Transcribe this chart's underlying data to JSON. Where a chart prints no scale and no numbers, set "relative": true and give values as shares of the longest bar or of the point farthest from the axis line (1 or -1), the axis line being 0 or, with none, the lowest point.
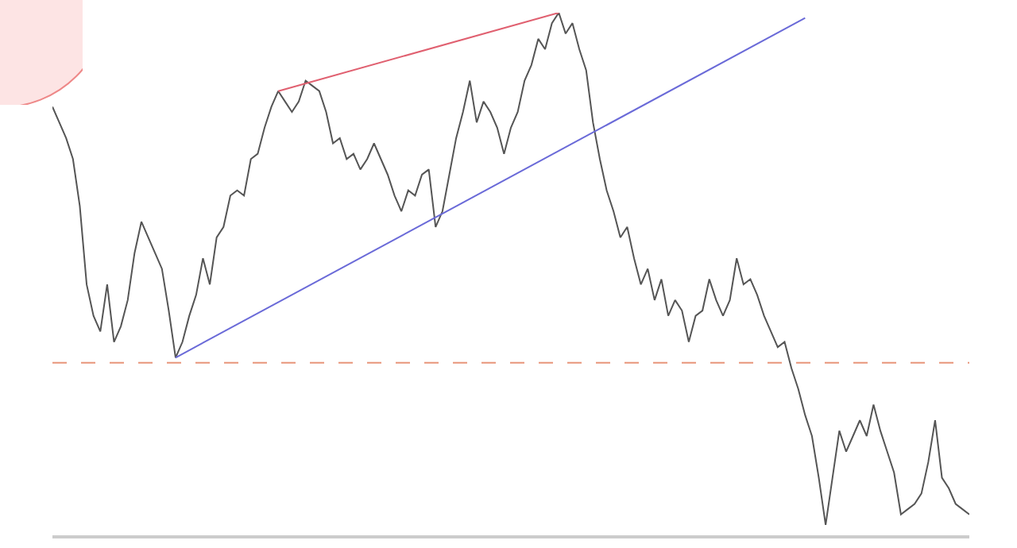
{
  "chart_data": {
    "type": "line",
    "relative": true,
    "marker": "none",
    "categories": [
      null,
      null,
      null,
      null,
      null,
      null,
      null,
      null,
      null,
      null,
      null,
      null,
      null,
      null,
      null,
      null,
      null,
      null,
      null,
      null,
      null,
      null,
      null,
      null,
      null,
      null,
      null,
      null,
      null,
      null,
      null,
      null,
      null,
      null,
      null,
      null,
      null,
      null,
      null,
      null,
      null,
      null,
      null,
      null,
      null,
      null,
      null,
      null,
      null,
      null,
      null,
      null,
      null,
      null,
      null,
      null,
      null,
      null,
      null,
      null,
      null,
      null,
      null,
      null,
      null,
      null,
      null,
      null,
      null,
      null,
      null,
      null,
      null,
      null,
      null,
      null,
      null,
      null,
      null,
      null,
      null,
      null,
      null,
      null,
      null,
      null,
      null,
      null,
      null,
      null,
      null,
      null,
      null,
      null,
      null,
      null,
      null,
      null,
      null,
      null,
      null,
      null,
      null,
      null,
      null,
      null,
      null,
      null,
      null,
      null,
      null,
      null,
      null,
      null,
      null,
      null,
      null,
      null,
      null,
      null,
      null,
      null,
      null,
      null,
      null,
      null,
      null,
      null,
      null,
      null,
      null,
      null,
      null,
      null,
      null
    ],
    "series": [
      {
        "color": "#555555",
        "values": [
          0.82,
          0.79,
          0.76,
          0.72,
          0.63,
          0.48,
          0.42,
          0.39,
          0.48,
          0.37,
          0.4,
          0.45,
          0.54,
          0.6,
          0.57,
          0.54,
          0.51,
          0.43,
          0.34,
          0.37,
          0.42,
          0.46,
          0.53,
          0.48,
          0.57,
          0.59,
          0.65,
          0.66,
          0.65,
          0.72,
          0.73,
          0.78,
          0.82,
          0.85,
          0.83,
          0.81,
          0.83,
          0.87,
          0.86,
          0.85,
          0.81,
          0.75,
          0.76,
          0.72,
          0.73,
          0.7,
          0.72,
          0.75,
          0.72,
          0.69,
          0.65,
          0.62,
          0.66,
          0.65,
          0.69,
          0.7,
          0.59,
          0.62,
          0.69,
          0.76,
          0.81,
          0.87,
          0.79,
          0.83,
          0.81,
          0.78,
          0.73,
          0.78,
          0.81,
          0.87,
          0.9,
          0.95,
          0.93,
          0.98,
          1,
          0.96,
          0.98,
          0.93,
          0.89,
          0.79,
          0.72,
          0.66,
          0.62,
          0.57,
          0.59,
          0.53,
          0.48,
          0.51,
          0.45,
          0.49,
          0.42,
          0.45,
          0.43,
          0.37,
          0.42,
          0.43,
          0.49,
          0.45,
          0.42,
          0.45,
          0.53,
          0.48,
          0.49,
          0.46,
          0.42,
          0.39,
          0.36,
          0.37,
          0.32,
          0.28,
          0.23,
          0.19,
          0.11,
          0.02,
          0.11,
          0.2,
          0.16,
          0.19,
          0.22,
          0.19,
          0.25,
          0.2,
          0.16,
          0.12,
          0.04,
          0.05,
          0.06,
          0.08,
          0.14,
          0.22,
          0.11,
          0.09,
          0.06,
          0.05,
          0.04
        ]
      },
      {
        "color": "#e06070",
        "values": [
          null,
          null,
          null,
          null,
          null,
          null,
          null,
          null,
          null,
          null,
          null,
          null,
          null,
          null,
          null,
          null,
          null,
          null,
          null,
          null,
          null,
          null,
          null,
          null,
          null,
          null,
          null,
          null,
          null,
          null,
          null,
          null,
          null,
          0.85,
          null,
          null,
          null,
          null,
          null,
          null,
          null,
          null,
          null,
          null,
          null,
          null,
          null,
          null,
          null,
          null,
          null,
          null,
          null,
          null,
          null,
          null,
          null,
          null,
          null,
          null,
          null,
          null,
          null,
          null,
          null,
          null,
          null,
          null,
          null,
          null,
          null,
          null,
          null,
          null,
          1,
          null,
          null,
          null,
          null,
          null,
          null,
          null,
          null,
          null,
          null,
          null,
          null,
          null,
          null,
          null,
          null,
          null,
          null,
          null,
          null,
          null,
          null,
          null,
          null,
          null,
          null,
          null,
          null,
          null,
          null,
          null,
          null,
          null,
          null,
          null,
          null,
          null,
          null,
          null,
          null,
          null,
          null,
          null,
          null,
          null,
          null,
          null,
          null,
          null,
          null,
          null,
          null,
          null,
          null,
          null,
          null,
          null,
          null,
          null,
          null
        ]
      },
      {
        "color": "#6a6ad8",
        "values": [
          null,
          null,
          null,
          null,
          null,
          null,
          null,
          null,
          null,
          null,
          null,
          null,
          null,
          null,
          null,
          null,
          null,
          null,
          0.34,
          null,
          null,
          null,
          null,
          null,
          null,
          null,
          null,
          null,
          null,
          null,
          null,
          null,
          null,
          null,
          null,
          null,
          null,
          null,
          null,
          null,
          null,
          null,
          null,
          null,
          null,
          null,
          null,
          null,
          null,
          null,
          null,
          null,
          null,
          null,
          null,
          null,
          null,
          null,
          null,
          null,
          null,
          null,
          null,
          null,
          null,
          null,
          null,
          null,
          null,
          null,
          null,
          null,
          null,
          null,
          null,
          null,
          null,
          null,
          null,
          null,
          null,
          null,
          null,
          null,
          null,
          null,
          null,
          null,
          null,
          null,
          null,
          null,
          null,
          null,
          null,
          null,
          null,
          null,
          null,
          null,
          null,
          null,
          null,
          null,
          null,
          null,
          null,
          null,
          null,
          null,
          0.99,
          null,
          null,
          null,
          null,
          null,
          null,
          null,
          null,
          null,
          null,
          null,
          null,
          null,
          null,
          null,
          null,
          null,
          null,
          null,
          null,
          null,
          null,
          null,
          null
        ]
      }
    ],
    "ref_lines": [
      {
        "axis": "y",
        "value": 0.33,
        "color": "#e8957a",
        "line_style": "dashed"
      }
    ]
  }
}
